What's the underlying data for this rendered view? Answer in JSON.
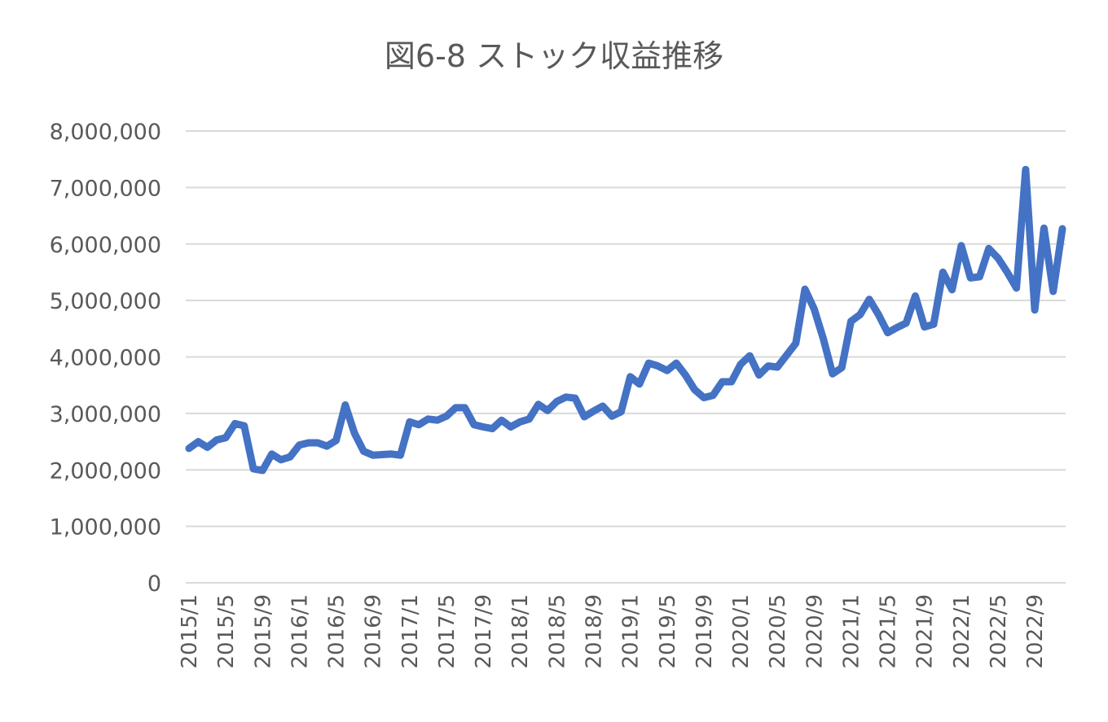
{
  "chart_data": {
    "type": "line",
    "title": "図6-8 ストック収益推移",
    "xlabel": "",
    "ylabel": "",
    "ylim": [
      0,
      8000000
    ],
    "yticks": [
      0,
      1000000,
      2000000,
      3000000,
      4000000,
      5000000,
      6000000,
      7000000,
      8000000
    ],
    "ytick_labels": [
      "0",
      "1,000,000",
      "2,000,000",
      "3,000,000",
      "4,000,000",
      "5,000,000",
      "6,000,000",
      "7,000,000",
      "8,000,000"
    ],
    "xtick_labels": [
      "2015/1",
      "2015/5",
      "2015/9",
      "2016/1",
      "2016/5",
      "2016/9",
      "2017/1",
      "2017/5",
      "2017/9",
      "2018/1",
      "2018/5",
      "2018/9",
      "2019/1",
      "2019/5",
      "2019/9",
      "2020/1",
      "2020/5",
      "2020/9",
      "2021/1",
      "2021/5",
      "2021/9",
      "2022/1",
      "2022/5",
      "2022/9"
    ],
    "xtick_every": 4,
    "grid": true,
    "legend": "none",
    "series": [
      {
        "color": "#4472c4",
        "values": [
          2380000,
          2500000,
          2400000,
          2530000,
          2570000,
          2820000,
          2780000,
          2020000,
          1990000,
          2280000,
          2180000,
          2230000,
          2440000,
          2480000,
          2480000,
          2420000,
          2520000,
          3150000,
          2650000,
          2330000,
          2260000,
          2270000,
          2280000,
          2260000,
          2850000,
          2800000,
          2900000,
          2880000,
          2950000,
          3100000,
          3100000,
          2800000,
          2760000,
          2730000,
          2880000,
          2760000,
          2850000,
          2900000,
          3160000,
          3050000,
          3210000,
          3290000,
          3270000,
          2940000,
          3040000,
          3130000,
          2950000,
          3030000,
          3650000,
          3520000,
          3890000,
          3840000,
          3760000,
          3890000,
          3680000,
          3420000,
          3280000,
          3320000,
          3560000,
          3560000,
          3870000,
          4020000,
          3680000,
          3840000,
          3820000,
          4030000,
          4240000,
          5200000,
          4850000,
          4320000,
          3700000,
          3810000,
          4630000,
          4750000,
          5020000,
          4750000,
          4430000,
          4520000,
          4600000,
          5080000,
          4530000,
          4580000,
          5500000,
          5190000,
          5970000,
          5400000,
          5420000,
          5920000,
          5750000,
          5500000,
          5220000,
          7320000,
          4830000,
          6280000,
          5160000,
          6270000
        ]
      }
    ]
  }
}
